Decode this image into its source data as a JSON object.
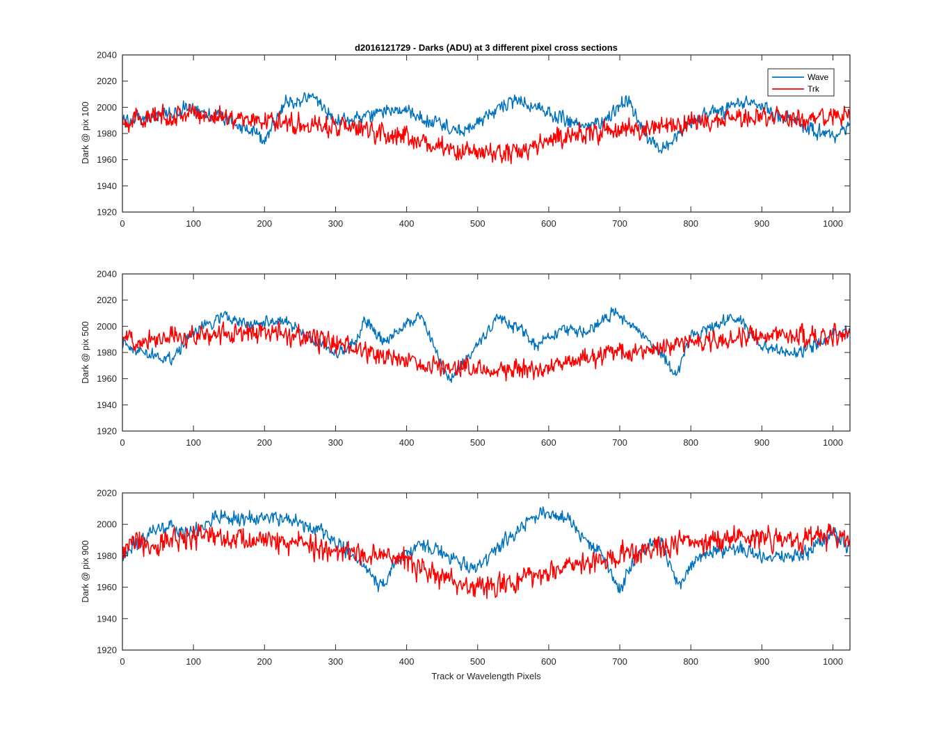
{
  "figure": {
    "title": "d2016121729 - Darks (ADU) at 3 different pixel cross sections",
    "xlabel": "Track or Wavelength Pixels",
    "colors": {
      "Wave": "#0072BD",
      "Trk": "#FF0000",
      "axes": "#262626",
      "background": "#FFFFFF"
    }
  },
  "chart_data": [
    {
      "type": "line",
      "ylabel": "Dark @ pix 100",
      "xlim": [
        0,
        1024
      ],
      "ylim": [
        1920,
        2040
      ],
      "xticks": [
        0,
        100,
        200,
        300,
        400,
        500,
        600,
        700,
        800,
        900,
        1000
      ],
      "yticks": [
        1920,
        1940,
        1960,
        1980,
        2000,
        2020,
        2040
      ],
      "legend": {
        "location": "top-right",
        "entries": [
          "Wave",
          "Trk"
        ]
      },
      "series": [
        {
          "name": "Wave",
          "color": "#0072BD",
          "noise": 7,
          "x": [
            0,
            50,
            100,
            150,
            200,
            230,
            270,
            300,
            350,
            380,
            420,
            460,
            480,
            500,
            530,
            560,
            600,
            650,
            680,
            710,
            740,
            760,
            800,
            850,
            880,
            920,
            960,
            1000,
            1024
          ],
          "y": [
            1990,
            1993,
            2000,
            1990,
            1976,
            2003,
            2008,
            1990,
            1993,
            2000,
            1992,
            1985,
            1980,
            1988,
            2000,
            2005,
            1995,
            1985,
            1990,
            2008,
            1975,
            1968,
            1990,
            1998,
            2006,
            1995,
            1985,
            1978,
            1985
          ]
        },
        {
          "name": "Trk",
          "color": "#FF0000",
          "noise": 10,
          "x": [
            0,
            100,
            200,
            300,
            400,
            450,
            500,
            550,
            600,
            650,
            700,
            750,
            800,
            850,
            900,
            950,
            1024
          ],
          "y": [
            1990,
            1995,
            1990,
            1985,
            1978,
            1968,
            1965,
            1965,
            1975,
            1980,
            1982,
            1985,
            1988,
            1990,
            1993,
            1990,
            1995
          ]
        }
      ]
    },
    {
      "type": "line",
      "ylabel": "Dark @ pix 500",
      "xlim": [
        0,
        1024
      ],
      "ylim": [
        1920,
        2040
      ],
      "xticks": [
        0,
        100,
        200,
        300,
        400,
        500,
        600,
        700,
        800,
        900,
        1000
      ],
      "yticks": [
        1920,
        1940,
        1960,
        1980,
        2000,
        2020,
        2040
      ],
      "series": [
        {
          "name": "Wave",
          "color": "#0072BD",
          "noise": 6,
          "x": [
            0,
            30,
            70,
            100,
            140,
            180,
            220,
            260,
            300,
            330,
            340,
            370,
            410,
            420,
            460,
            480,
            530,
            560,
            580,
            620,
            650,
            690,
            720,
            760,
            780,
            800,
            850,
            870,
            900,
            950,
            1000,
            1024
          ],
          "y": [
            1988,
            1980,
            1975,
            1995,
            2008,
            2000,
            2005,
            1993,
            1978,
            1990,
            2005,
            1988,
            2005,
            2008,
            1958,
            1970,
            2008,
            1998,
            1985,
            1998,
            1995,
            2010,
            2000,
            1978,
            1962,
            1992,
            2005,
            2005,
            1985,
            1978,
            1993,
            1995
          ]
        },
        {
          "name": "Trk",
          "color": "#FF0000",
          "noise": 10,
          "x": [
            0,
            100,
            200,
            300,
            350,
            420,
            450,
            500,
            550,
            600,
            650,
            700,
            750,
            800,
            850,
            900,
            950,
            1024
          ],
          "y": [
            1990,
            1993,
            1995,
            1988,
            1978,
            1972,
            1968,
            1970,
            1966,
            1968,
            1975,
            1980,
            1983,
            1988,
            1990,
            1993,
            1992,
            1994
          ]
        }
      ]
    },
    {
      "type": "line",
      "ylabel": "Dark @ pix 900",
      "xlim": [
        0,
        1024
      ],
      "ylim": [
        1920,
        2020
      ],
      "xticks": [
        0,
        100,
        200,
        300,
        400,
        500,
        600,
        700,
        800,
        900,
        1000
      ],
      "yticks": [
        1920,
        1940,
        1960,
        1980,
        2000,
        2020
      ],
      "series": [
        {
          "name": "Wave",
          "color": "#0072BD",
          "noise": 6,
          "x": [
            0,
            50,
            100,
            130,
            180,
            200,
            230,
            270,
            300,
            330,
            370,
            380,
            420,
            460,
            500,
            520,
            560,
            590,
            620,
            650,
            680,
            700,
            730,
            760,
            780,
            820,
            870,
            900,
            950,
            1000,
            1024
          ],
          "y": [
            1980,
            1998,
            1995,
            2005,
            2003,
            2005,
            2003,
            1998,
            1990,
            1978,
            1958,
            1975,
            1988,
            1980,
            1970,
            1982,
            1998,
            2008,
            2005,
            1993,
            1978,
            1958,
            1985,
            1988,
            1960,
            1982,
            1985,
            1980,
            1978,
            1995,
            1985
          ]
        },
        {
          "name": "Trk",
          "color": "#FF0000",
          "noise": 10,
          "x": [
            0,
            100,
            200,
            300,
            400,
            450,
            500,
            550,
            600,
            650,
            700,
            750,
            800,
            850,
            900,
            950,
            1024
          ],
          "y": [
            1985,
            1992,
            1990,
            1983,
            1978,
            1965,
            1960,
            1963,
            1970,
            1975,
            1980,
            1985,
            1988,
            1990,
            1992,
            1990,
            1992
          ]
        }
      ]
    }
  ]
}
